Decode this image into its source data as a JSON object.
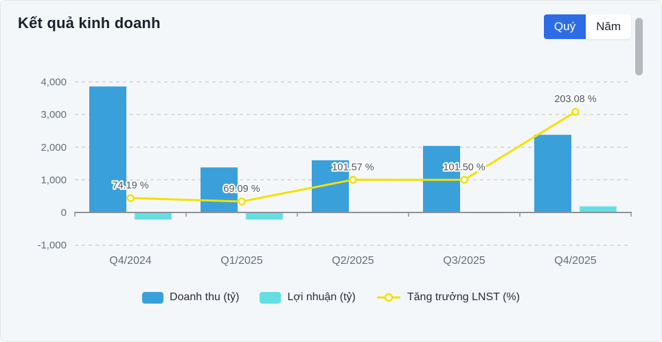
{
  "header": {
    "title": "Kết quả kinh doanh",
    "period_toggle": {
      "quarter_label": "Quý",
      "year_label": "Năm",
      "active": "Quý"
    }
  },
  "colors": {
    "revenue_bar": "#3aa0da",
    "profit_bar": "#63dee2",
    "profit_bar_edge": "#b9f0f3",
    "growth_line": "#f2e100",
    "marker_fill": "#ffffff",
    "grid_line": "#c6cbd1",
    "axis_line": "#8e9296",
    "axis_text": "#666d76",
    "data_label_text": "#4e5359",
    "active_button_blue": "#2e6ce6",
    "card_background": "#f4f7fa"
  },
  "chart_data": {
    "type": "bar",
    "title": "Kết quả kinh doanh",
    "categories": [
      "Q4/2024",
      "Q1/2025",
      "Q2/2025",
      "Q3/2025",
      "Q4/2025"
    ],
    "series": [
      {
        "name": "Doanh thu (tỷ)",
        "type": "bar",
        "values": [
          3860,
          1380,
          1600,
          2040,
          2380
        ]
      },
      {
        "name": "Lợi nhuận (tỷ)",
        "type": "bar",
        "values": [
          -220,
          -220,
          15,
          10,
          190
        ]
      },
      {
        "name": "Tăng trưởng LNST (%)",
        "type": "line",
        "values": [
          74.19,
          69.09,
          101.57,
          101.5,
          203.08
        ],
        "labels": [
          "74.19 %",
          "69.09 %",
          "101.57 %",
          "101.50 %",
          "203.08 %"
        ]
      }
    ],
    "xlabel": "",
    "ylabel": "",
    "ylim": [
      -1000,
      4000
    ],
    "yticks": [
      {
        "value": 4000,
        "label": "4,000"
      },
      {
        "value": 3000,
        "label": "3,000"
      },
      {
        "value": 2000,
        "label": "2,000"
      },
      {
        "value": 1000,
        "label": "1,000"
      },
      {
        "value": 0,
        "label": "0"
      },
      {
        "value": -1000,
        "label": "-1,000"
      }
    ],
    "grid": "dashed-horizontal",
    "legend_position": "bottom",
    "line_axis_mapping": {
      "units_per_percent": 20.5,
      "offset": -1080
    }
  }
}
